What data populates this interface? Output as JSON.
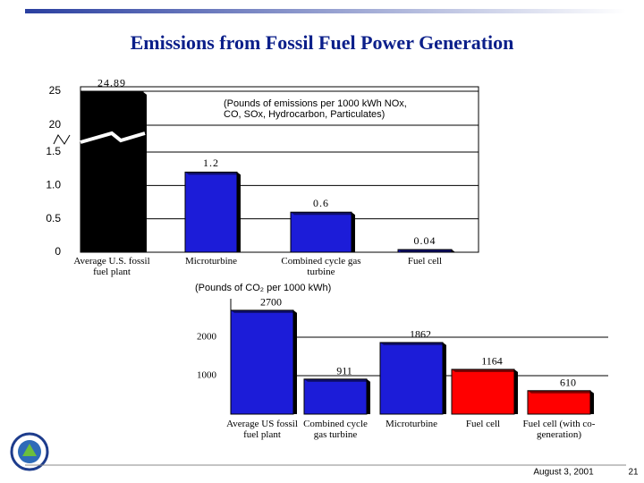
{
  "title": "Emissions from Fossil Fuel Power Generation",
  "chart_data": [
    {
      "type": "bar",
      "annotation": [
        "(Pounds of emissions per 1000 kWh NOx,",
        "CO, SOx, Hydrocarbon, Particulates)"
      ],
      "categories": [
        "Average U.S. fossil fuel plant",
        "Microturbine",
        "Combined cycle gas turbine",
        "Fuel cell"
      ],
      "values": [
        24.89,
        1.2,
        0.6,
        0.04
      ],
      "value_labels": [
        "24.89",
        "1.2",
        "0.6",
        "0.04"
      ],
      "colors": [
        "#000000",
        "#1c1cd8",
        "#1c1cd8",
        "#1c1cd8"
      ],
      "ylim": [
        0,
        25
      ],
      "yticks": [
        0,
        0.5,
        {
          "value": 1,
          "label": "1.0"
        },
        1.5,
        20,
        25
      ],
      "axis_break": true
    },
    {
      "type": "bar",
      "annotation": "(Pounds of CO₂ per 1000 kWh)",
      "categories": [
        "Average US fossil fuel plant",
        "Combined cycle gas turbine",
        "Microturbine",
        "Fuel cell",
        "Fuel cell (with co-generation)"
      ],
      "values": [
        2700,
        911,
        1862,
        1164,
        610
      ],
      "colors": [
        "#1c1cd8",
        "#1c1cd8",
        "#1c1cd8",
        "#ff0000",
        "#ff0000"
      ],
      "ylim": [
        0,
        3000
      ],
      "yticks": [
        1000,
        2000
      ]
    }
  ],
  "footer": {
    "date": "August 3, 2001",
    "page": "21"
  }
}
